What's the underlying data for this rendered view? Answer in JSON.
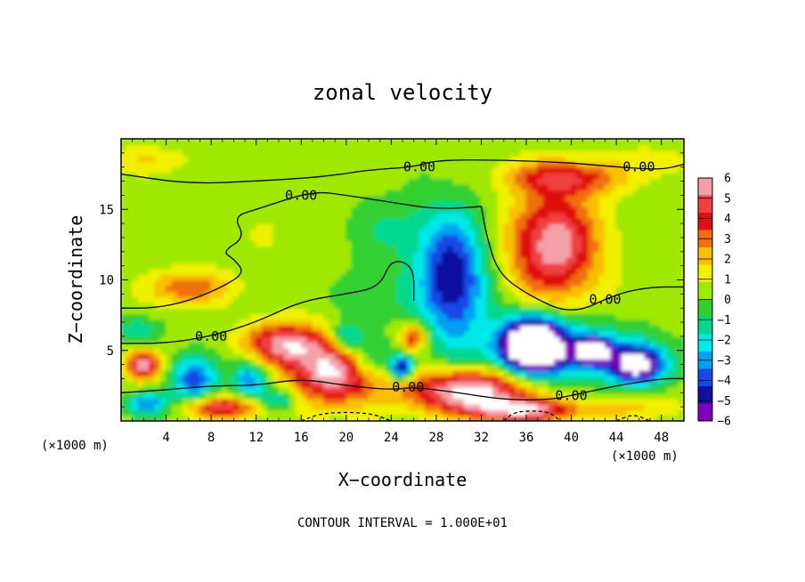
{
  "chart_data": {
    "type": "heatmap",
    "title": "zonal velocity",
    "xlabel": "X−coordinate",
    "ylabel": "Z−coordinate",
    "x_unit_left": "(×1000 m)",
    "x_unit_right": "(×1000 m)",
    "footer": "CONTOUR INTERVAL = 1.000E+01",
    "xlim": [
      0,
      50
    ],
    "ylim": [
      0,
      20
    ],
    "xticks": [
      4,
      8,
      12,
      16,
      20,
      24,
      28,
      32,
      36,
      40,
      44,
      48
    ],
    "yticks": [
      5,
      10,
      15
    ],
    "colorbar": {
      "range": [
        -6,
        6
      ],
      "ticks": [
        6,
        5,
        4,
        3,
        2,
        1,
        0,
        -1,
        -2,
        -3,
        -4,
        -5,
        -6
      ],
      "colors": [
        "#f4a0a8",
        "#f04040",
        "#e01010",
        "#f07010",
        "#f8c000",
        "#f0f000",
        "#a0e800",
        "#30d030",
        "#00d890",
        "#00e8e8",
        "#00a0f0",
        "#1848e8",
        "#1010a0",
        "#8000c0"
      ]
    },
    "contour_labels": [
      {
        "text": "0.00",
        "x": 26.5,
        "y": 18.0
      },
      {
        "text": "0.00",
        "x": 46.0,
        "y": 18.0
      },
      {
        "text": "0.00",
        "x": 16.0,
        "y": 16.0
      },
      {
        "text": "0.00",
        "x": 43.0,
        "y": 8.6
      },
      {
        "text": "0.00",
        "x": 8.0,
        "y": 6.0
      },
      {
        "text": "0.00",
        "x": 25.5,
        "y": 2.4
      },
      {
        "text": "0.00",
        "x": 40.0,
        "y": 1.8
      }
    ],
    "features": [
      {
        "x": 38.5,
        "y": 12.5,
        "rx": 4.0,
        "ry": 3.8,
        "v": 5.5
      },
      {
        "x": 39.5,
        "y": 17.3,
        "rx": 5.0,
        "ry": 1.2,
        "v": 3.5
      },
      {
        "x": 29.5,
        "y": 10.0,
        "rx": 3.0,
        "ry": 4.5,
        "v": -5.5
      },
      {
        "x": 39.0,
        "y": 5.0,
        "rx": 6.0,
        "ry": 2.0,
        "v": -4.5
      },
      {
        "x": 36.5,
        "y": 5.5,
        "rx": 2.6,
        "ry": 1.9,
        "v": -8.5
      },
      {
        "x": 46.0,
        "y": 4.0,
        "rx": 2.5,
        "ry": 1.4,
        "v": -7.0
      },
      {
        "x": 42.0,
        "y": 5.0,
        "rx": 1.3,
        "ry": 0.8,
        "v": -7.5
      },
      {
        "x": 31.0,
        "y": 2.2,
        "rx": 5.5,
        "ry": 1.5,
        "v": 6.5
      },
      {
        "x": 36.0,
        "y": 0.8,
        "rx": 5.0,
        "ry": 0.8,
        "v": 5.0
      },
      {
        "x": 19.0,
        "y": 3.5,
        "rx": 4.0,
        "ry": 2.2,
        "v": 6.0
      },
      {
        "x": 14.5,
        "y": 5.5,
        "rx": 3.5,
        "ry": 1.5,
        "v": 5.0
      },
      {
        "x": 2.0,
        "y": 4.0,
        "rx": 1.5,
        "ry": 1.0,
        "v": 5.5
      },
      {
        "x": 6.0,
        "y": 9.5,
        "rx": 3.5,
        "ry": 1.2,
        "v": 3.0
      },
      {
        "x": 6.5,
        "y": 3.0,
        "rx": 2.0,
        "ry": 1.6,
        "v": -4.5
      },
      {
        "x": 11.5,
        "y": 3.0,
        "rx": 1.5,
        "ry": 1.4,
        "v": -4.0
      },
      {
        "x": 2.5,
        "y": 1.2,
        "rx": 1.8,
        "ry": 0.8,
        "v": -4.0
      },
      {
        "x": 25.0,
        "y": 3.8,
        "rx": 1.0,
        "ry": 0.8,
        "v": -6.0
      },
      {
        "x": 26.0,
        "y": 6.0,
        "rx": 1.2,
        "ry": 1.0,
        "v": 4.0
      },
      {
        "x": 22.0,
        "y": 4.5,
        "rx": 2.5,
        "ry": 1.5,
        "v": -3.0
      },
      {
        "x": 2.5,
        "y": 18.5,
        "rx": 4.0,
        "ry": 1.0,
        "v": 1.3
      },
      {
        "x": 47.0,
        "y": 18.5,
        "rx": 3.0,
        "ry": 1.2,
        "v": 1.0
      },
      {
        "x": 24.0,
        "y": 13.5,
        "rx": 5.0,
        "ry": 2.5,
        "v": -1.3
      },
      {
        "x": 15.0,
        "y": 13.0,
        "rx": 7.0,
        "ry": 3.0,
        "v": 0.5
      },
      {
        "x": 23.0,
        "y": 9.0,
        "rx": 4.0,
        "ry": 2.0,
        "v": -1.0
      },
      {
        "x": 9.0,
        "y": 1.0,
        "rx": 3.5,
        "ry": 0.8,
        "v": 4.5
      },
      {
        "x": 46.0,
        "y": 1.0,
        "rx": 3.5,
        "ry": 1.0,
        "v": 1.5
      },
      {
        "x": 14.0,
        "y": 1.5,
        "rx": 1.5,
        "ry": 0.8,
        "v": -3.0
      },
      {
        "x": 20.0,
        "y": 6.0,
        "rx": 1.5,
        "ry": 1.0,
        "v": -3.0
      },
      {
        "x": 1.5,
        "y": 6.5,
        "rx": 2.0,
        "ry": 0.8,
        "v": -2.0
      }
    ],
    "contours": [
      {
        "style": "solid",
        "points": [
          [
            0,
            17.5
          ],
          [
            6,
            16.8
          ],
          [
            12,
            17.0
          ],
          [
            18,
            17.3
          ],
          [
            22,
            17.8
          ],
          [
            26,
            18.0
          ],
          [
            28,
            18.5
          ],
          [
            34,
            18.5
          ],
          [
            40,
            18.3
          ],
          [
            44,
            18.0
          ],
          [
            48,
            17.8
          ],
          [
            50,
            18.2
          ]
        ]
      },
      {
        "style": "solid",
        "points": [
          [
            32,
            15.2
          ],
          [
            28,
            15.0
          ],
          [
            24,
            15.5
          ],
          [
            20,
            16.0
          ],
          [
            17,
            16.3
          ],
          [
            12,
            15.0
          ],
          [
            10,
            14.5
          ],
          [
            11,
            13.0
          ],
          [
            9,
            12.0
          ],
          [
            10,
            11.5
          ],
          [
            11,
            10.5
          ],
          [
            9,
            9.5
          ],
          [
            6,
            8.5
          ],
          [
            3,
            8.0
          ],
          [
            0,
            8.0
          ]
        ]
      },
      {
        "style": "solid",
        "points": [
          [
            32,
            15.2
          ],
          [
            32.5,
            13.0
          ],
          [
            33.5,
            10.5
          ],
          [
            36,
            9.0
          ],
          [
            40,
            7.5
          ],
          [
            44,
            9.0
          ],
          [
            47,
            9.5
          ],
          [
            50,
            9.5
          ]
        ]
      },
      {
        "style": "solid",
        "points": [
          [
            0,
            5.5
          ],
          [
            4,
            5.5
          ],
          [
            8,
            6.0
          ],
          [
            12,
            7.0
          ],
          [
            16,
            8.5
          ],
          [
            20,
            9.0
          ],
          [
            23,
            9.5
          ],
          [
            24,
            11.5
          ],
          [
            26,
            11.0
          ],
          [
            26,
            8.5
          ]
        ]
      },
      {
        "style": "solid",
        "points": [
          [
            0,
            2.0
          ],
          [
            4,
            2.2
          ],
          [
            8,
            2.5
          ],
          [
            12,
            2.5
          ],
          [
            16,
            3.0
          ],
          [
            20,
            2.5
          ],
          [
            24,
            2.2
          ],
          [
            26,
            2.4
          ],
          [
            30,
            2.0
          ],
          [
            34,
            1.5
          ],
          [
            38,
            1.5
          ],
          [
            40,
            1.8
          ],
          [
            44,
            2.5
          ],
          [
            48,
            3.0
          ],
          [
            50,
            3.0
          ]
        ]
      },
      {
        "style": "dashed",
        "points": [
          [
            16,
            0.0
          ],
          [
            18,
            0.6
          ],
          [
            22,
            0.6
          ],
          [
            24,
            0.0
          ]
        ]
      },
      {
        "style": "dashed",
        "points": [
          [
            34,
            0.0
          ],
          [
            35,
            0.7
          ],
          [
            38,
            0.7
          ],
          [
            39,
            0.0
          ]
        ]
      },
      {
        "style": "dashed",
        "points": [
          [
            44,
            0.0
          ],
          [
            45.5,
            0.5
          ],
          [
            47,
            0.0
          ]
        ]
      }
    ]
  }
}
